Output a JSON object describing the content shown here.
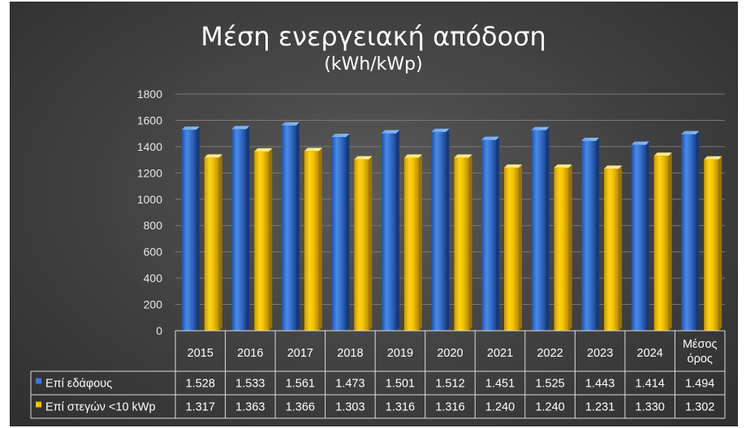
{
  "chart_data": {
    "type": "bar",
    "title": "Μέση ενεργειακή απόδοση",
    "subtitle": "(kWh/kWp)",
    "categories": [
      "2015",
      "2016",
      "2017",
      "2018",
      "2019",
      "2020",
      "2021",
      "2022",
      "2023",
      "2024",
      "Μέσος όρος"
    ],
    "category_lines": [
      [
        "2015"
      ],
      [
        "2016"
      ],
      [
        "2017"
      ],
      [
        "2018"
      ],
      [
        "2019"
      ],
      [
        "2020"
      ],
      [
        "2021"
      ],
      [
        "2022"
      ],
      [
        "2023"
      ],
      [
        "2024"
      ],
      [
        "Μέσος",
        "όρος"
      ]
    ],
    "series": [
      {
        "name": "Επί εδάφους",
        "color": "#3b78d4",
        "values": [
          1528,
          1533,
          1561,
          1473,
          1501,
          1512,
          1451,
          1525,
          1443,
          1414,
          1494
        ],
        "labels": [
          "1.528",
          "1.533",
          "1.561",
          "1.473",
          "1.501",
          "1.512",
          "1.451",
          "1.525",
          "1.443",
          "1.414",
          "1.494"
        ]
      },
      {
        "name": "Επί στεγών <10 kWp",
        "color": "#f2c200",
        "values": [
          1317,
          1363,
          1366,
          1303,
          1316,
          1316,
          1240,
          1240,
          1231,
          1330,
          1302
        ],
        "labels": [
          "1.317",
          "1.363",
          "1.366",
          "1.303",
          "1.316",
          "1.316",
          "1.240",
          "1.240",
          "1.231",
          "1.330",
          "1.302"
        ]
      }
    ],
    "yticks": [
      "0",
      "200",
      "400",
      "600",
      "800",
      "1000",
      "1200",
      "1400",
      "1600",
      "1800"
    ],
    "ylim": [
      0,
      1800
    ],
    "grid": true,
    "legend": "data-table"
  }
}
